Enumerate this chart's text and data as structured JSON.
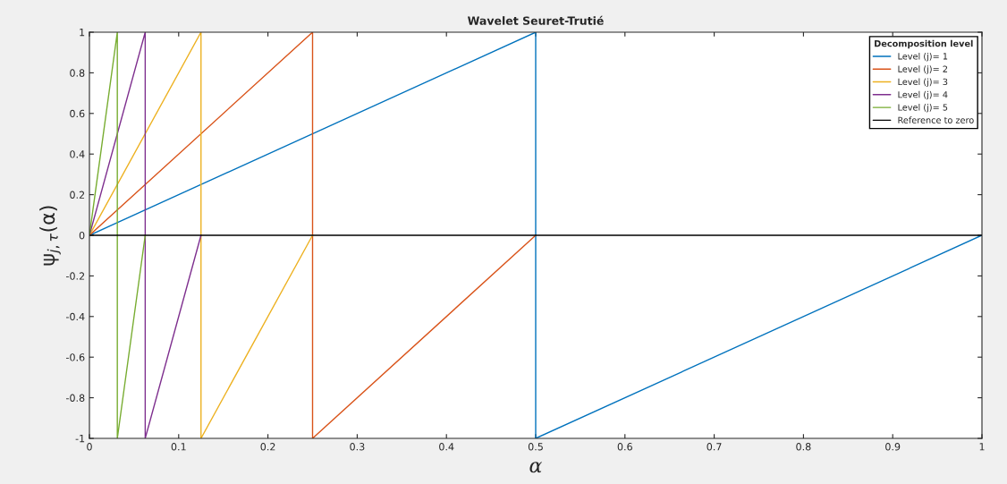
{
  "chart_data": {
    "type": "line",
    "title": "Wavelet Seuret-Trutié",
    "xlabel": "α",
    "ylabel": "ψ$_{j,τ}$(α)",
    "legend_title": "Decomposition level",
    "series": [
      {
        "name": "Level (j)= 1",
        "color": "#0072bd",
        "x": [
          0,
          0.5,
          0.5,
          1
        ],
        "values": [
          0,
          1,
          -1,
          0
        ]
      },
      {
        "name": "Level (j)= 2",
        "color": "#d95319",
        "x": [
          0,
          0.25,
          0.25,
          0.5
        ],
        "values": [
          0,
          1,
          -1,
          0
        ]
      },
      {
        "name": "Level (j)= 3",
        "color": "#edb120",
        "x": [
          0,
          0.125,
          0.125,
          0.25
        ],
        "values": [
          0,
          1,
          -1,
          0
        ]
      },
      {
        "name": "Level (j)= 4",
        "color": "#7e2f8e",
        "x": [
          0,
          0.0625,
          0.0625,
          0.125
        ],
        "values": [
          0,
          1,
          -1,
          0
        ]
      },
      {
        "name": "Level (j)= 5",
        "color": "#77ac30",
        "x": [
          0,
          0.03125,
          0.03125,
          0.0625
        ],
        "values": [
          0,
          1,
          -1,
          0
        ]
      },
      {
        "name": "Reference to zero",
        "color": "#000000",
        "x": [
          0,
          1
        ],
        "values": [
          0,
          0
        ]
      }
    ],
    "xlim": [
      0,
      1
    ],
    "ylim": [
      -1,
      1
    ],
    "xticks": [
      0,
      0.1,
      0.2,
      0.3,
      0.4,
      0.5,
      0.6,
      0.7,
      0.8,
      0.9,
      1
    ],
    "yticks": [
      -1,
      -0.8,
      -0.6,
      -0.4,
      -0.2,
      0,
      0.2,
      0.4,
      0.6,
      0.8,
      1
    ],
    "grid": false,
    "legend": "top right",
    "line_style": "solid",
    "marker": "none"
  }
}
